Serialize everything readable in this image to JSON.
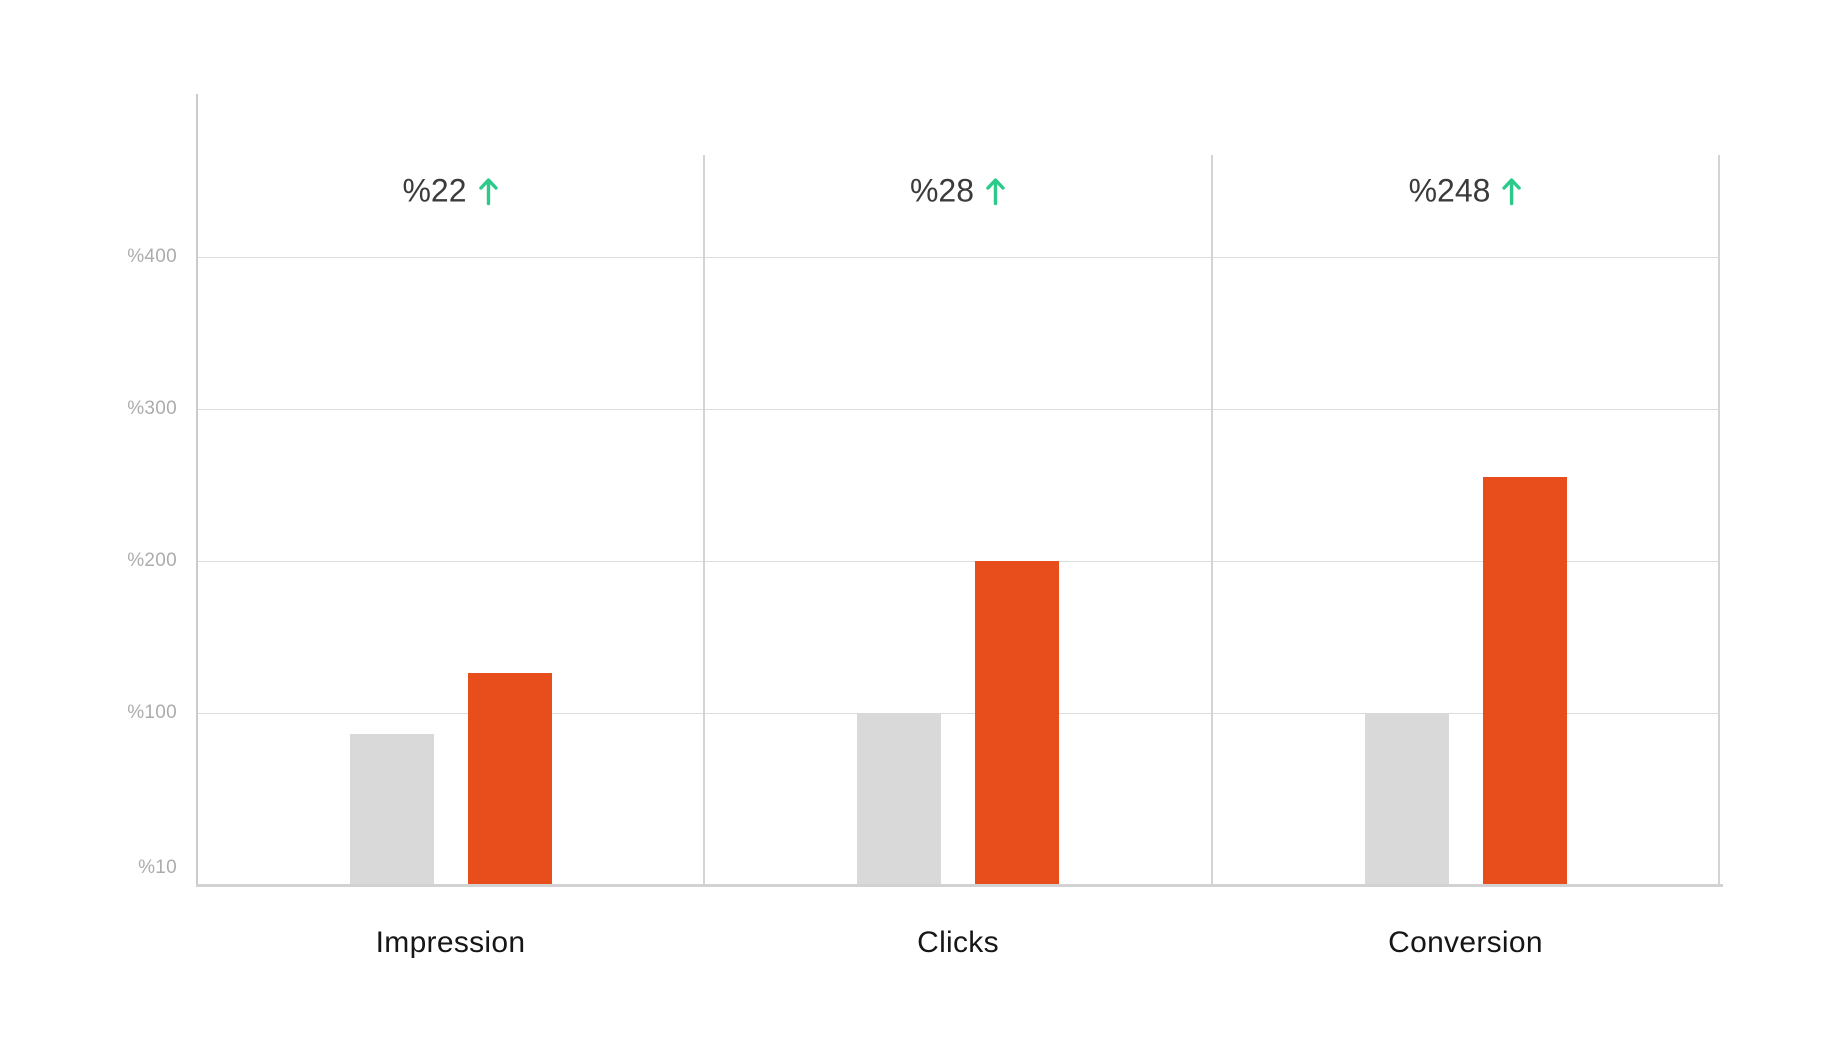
{
  "chart_data": {
    "type": "bar",
    "title": "",
    "categories": [
      "Impression",
      "Clicks",
      "Conversion"
    ],
    "series": [
      {
        "name": "gray-bar-series",
        "color": "#d9d9d9",
        "values": [
          86,
          100,
          100
        ]
      },
      {
        "name": "orange-bar-series",
        "color": "#e84e1b",
        "values": [
          126,
          200,
          255
        ]
      }
    ],
    "annotations": [
      {
        "text": "%22",
        "direction": "up"
      },
      {
        "text": "%28",
        "direction": "up"
      },
      {
        "text": "%248",
        "direction": "up"
      }
    ],
    "y_ticks": [
      {
        "label": "%400",
        "value": 400,
        "gridline": true
      },
      {
        "label": "%300",
        "value": 300,
        "gridline": true
      },
      {
        "label": "%200",
        "value": 200,
        "gridline": true
      },
      {
        "label": "%100",
        "value": 100,
        "gridline": true
      },
      {
        "label": "%10",
        "value": 10,
        "gridline": false
      }
    ],
    "ylim": [
      0,
      467
    ],
    "grid": "horizontal gridlines + vertical panel separators",
    "legend": "none",
    "colors": {
      "bar_gray": "#d9d9d9",
      "bar_orange": "#e84e1b",
      "arrow_green": "#2bc98a",
      "annotation_text": "#3b3b3b",
      "category_text": "#161616",
      "tick_text": "#acacac",
      "gridline": "#dcdcdc",
      "axis_line": "#cbcbcb"
    }
  }
}
